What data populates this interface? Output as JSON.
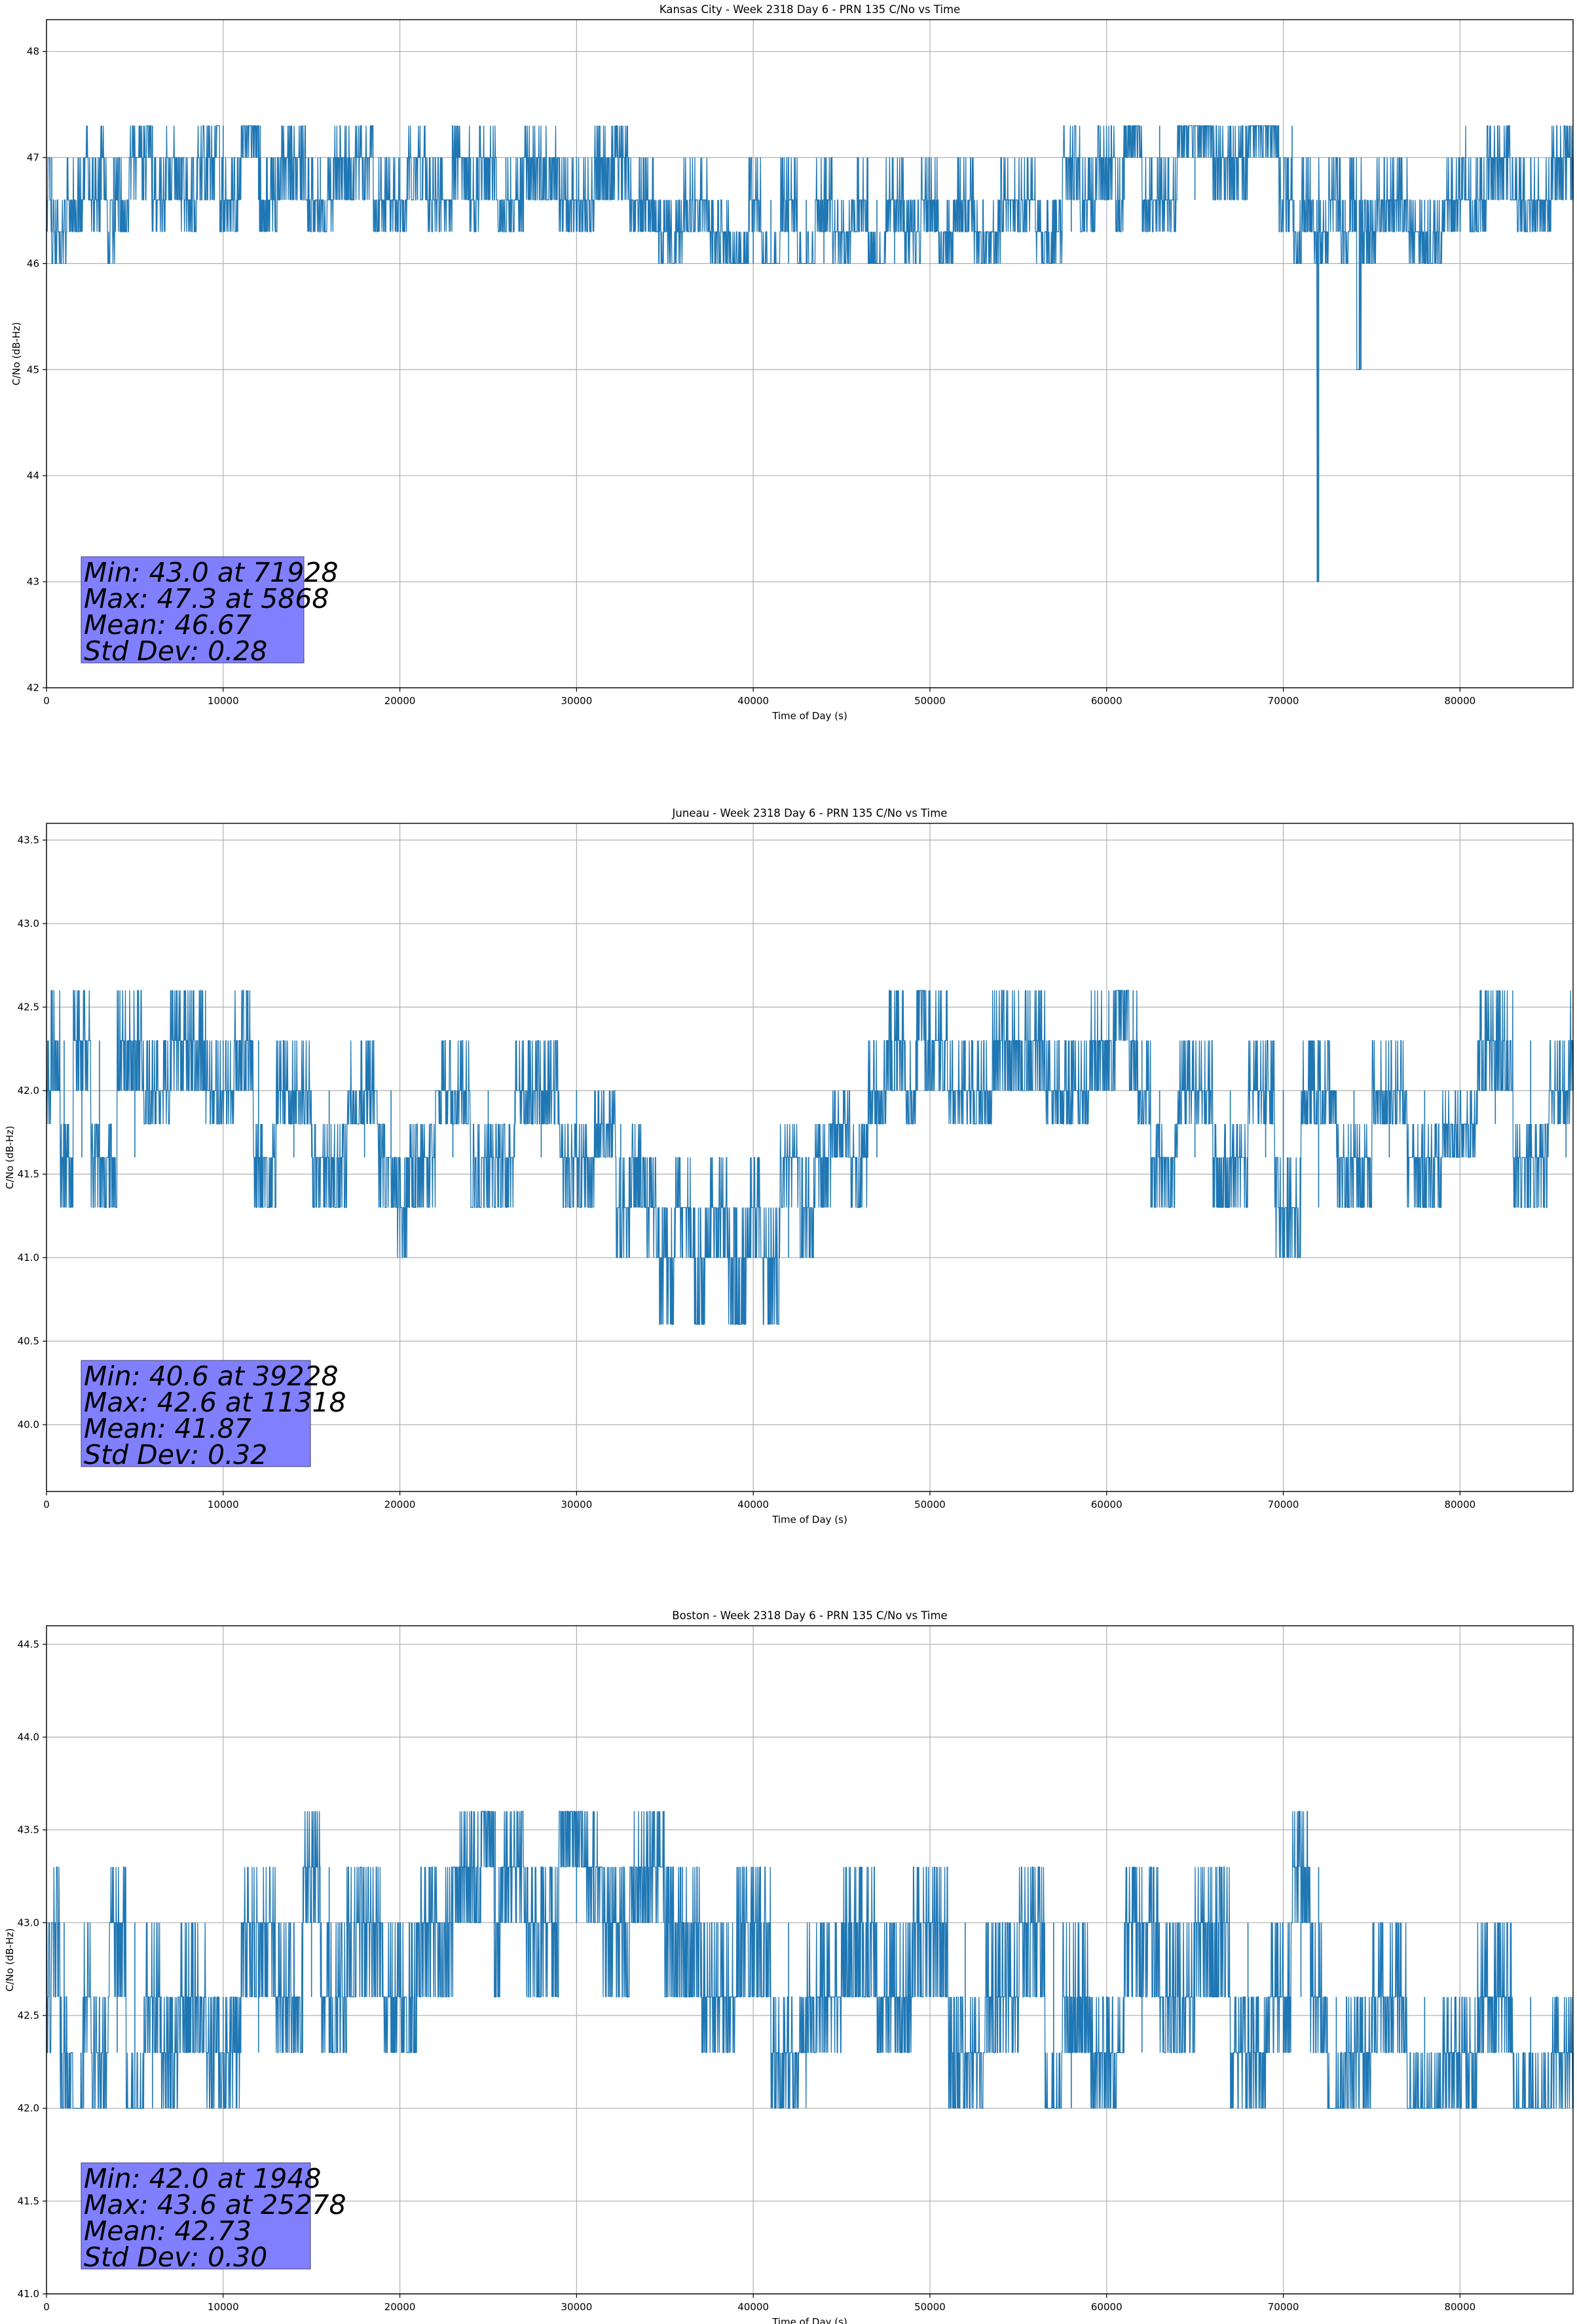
{
  "chart_data": [
    {
      "type": "line",
      "title": "Kansas City - Week 2318 Day 6 - PRN 135 C/No vs Time",
      "xlabel": "Time of Day (s)",
      "ylabel": "C/No (dB-Hz)",
      "xlim": [
        0,
        86400
      ],
      "ylim": [
        42,
        48.3
      ],
      "xticks": [
        0,
        10000,
        20000,
        30000,
        40000,
        50000,
        60000,
        70000,
        80000
      ],
      "yticks": [
        42,
        43,
        44,
        45,
        46,
        47,
        48
      ],
      "ytick_labels": [
        "42",
        "43",
        "44",
        "45",
        "46",
        "47",
        "48"
      ],
      "grid": true,
      "line_color": "#1f77b4",
      "stats_box_color": "#8080ff",
      "stats": [
        "Min: 43.0 at 71928",
        "Max: 47.3 at 5868",
        "Mean: 46.67",
        "Std Dev: 0.28"
      ],
      "series": [
        {
          "x": [
            0,
            200,
            300,
            2000,
            2100,
            3000,
            3100,
            3800,
            3900,
            5500,
            5868,
            6000,
            7500,
            7600,
            9500,
            9600,
            10000,
            12000,
            12100,
            14000,
            15500,
            17000,
            20000,
            21000,
            22000,
            23900,
            24000,
            25000,
            26000,
            28000,
            30000,
            32000,
            33900,
            34000,
            35000,
            37000,
            38000,
            39500,
            40000,
            41000,
            42000,
            43000,
            44000,
            45000,
            46000,
            47000,
            48000,
            49000,
            50000,
            51000,
            52000,
            53000,
            55000,
            57000,
            58000,
            59000,
            60000,
            60900,
            61000,
            63000,
            65000,
            67000,
            69000,
            70500,
            70600,
            71500,
            71900,
            71928,
            72000,
            72100,
            73000,
            73500,
            74000,
            74300,
            74400,
            74500,
            76000,
            78000,
            80000,
            80100,
            81000,
            82000,
            84000,
            86400
          ],
          "y": [
            46.6,
            47.0,
            46.3,
            46.6,
            47.0,
            46.6,
            47.0,
            46.3,
            46.6,
            47.0,
            47.3,
            46.6,
            47.0,
            46.6,
            47.0,
            47.3,
            46.6,
            47.3,
            46.6,
            47.0,
            46.6,
            47.0,
            46.6,
            47.0,
            46.6,
            47.0,
            46.6,
            47.0,
            46.6,
            47.0,
            46.6,
            47.0,
            46.6,
            46.6,
            46.3,
            46.6,
            46.3,
            46.0,
            46.6,
            46.0,
            46.6,
            46.0,
            46.6,
            46.3,
            46.6,
            46.0,
            46.6,
            46.3,
            46.6,
            46.3,
            46.6,
            46.3,
            46.6,
            46.3,
            47.0,
            46.6,
            47.0,
            46.6,
            47.3,
            46.6,
            47.3,
            47.0,
            47.3,
            46.6,
            46.3,
            46.6,
            46.3,
            43.0,
            46.6,
            46.3,
            46.6,
            46.3,
            46.6,
            45.0,
            46.6,
            46.3,
            46.6,
            46.3,
            46.6,
            47.0,
            46.6,
            47.0,
            46.6,
            47.0
          ]
        }
      ]
    },
    {
      "type": "line",
      "title": "Juneau - Week 2318 Day 6 - PRN 135 C/No vs Time",
      "xlabel": "Time of Day (s)",
      "ylabel": "C/No (dB-Hz)",
      "xlim": [
        0,
        86400
      ],
      "ylim": [
        39.6,
        43.6
      ],
      "xticks": [
        0,
        10000,
        20000,
        30000,
        40000,
        50000,
        60000,
        70000,
        80000
      ],
      "yticks": [
        40.0,
        40.5,
        41.0,
        41.5,
        42.0,
        42.5,
        43.0,
        43.5
      ],
      "ytick_labels": [
        "40.0",
        "40.5",
        "41.0",
        "41.5",
        "42.0",
        "42.5",
        "43.0",
        "43.5"
      ],
      "grid": true,
      "line_color": "#1f77b4",
      "stats_box_color": "#8080ff",
      "stats": [
        "Min: 40.6 at 39228",
        "Max: 42.6 at 11318",
        "Mean: 41.87",
        "Std Dev: 0.32"
      ],
      "series": [
        {
          "x": [
            0,
            500,
            1000,
            2000,
            3000,
            5000,
            6000,
            8000,
            10000,
            11300,
            11318,
            11400,
            12000,
            14000,
            16000,
            18000,
            19500,
            20000,
            21000,
            23000,
            25000,
            28000,
            30000,
            32000,
            32500,
            33500,
            34000,
            35000,
            36000,
            37000,
            38000,
            39000,
            39228,
            39400,
            40000,
            41000,
            42000,
            43000,
            44000,
            45000,
            46000,
            47000,
            48000,
            49200,
            49300,
            50000,
            52000,
            55000,
            58000,
            60000,
            61000,
            61500,
            62000,
            63000,
            65000,
            67000,
            69000,
            70000,
            72000,
            74000,
            76000,
            78000,
            80000,
            82000,
            84000,
            86000,
            86400
          ],
          "y": [
            42.0,
            42.3,
            41.6,
            42.3,
            41.6,
            42.3,
            42.0,
            42.3,
            42.0,
            42.3,
            42.6,
            42.3,
            41.6,
            42.0,
            41.6,
            42.0,
            41.6,
            41.3,
            41.6,
            42.0,
            41.6,
            42.0,
            41.6,
            41.8,
            41.3,
            41.6,
            41.3,
            41.0,
            41.3,
            41.0,
            41.3,
            41.0,
            40.6,
            41.0,
            41.3,
            41.0,
            41.6,
            41.3,
            41.6,
            41.8,
            41.6,
            42.0,
            42.3,
            42.0,
            42.6,
            42.3,
            42.0,
            42.3,
            42.0,
            42.3,
            42.6,
            42.3,
            42.0,
            41.6,
            42.0,
            41.6,
            42.0,
            41.3,
            42.0,
            41.6,
            42.0,
            41.6,
            41.8,
            42.3,
            41.6,
            42.0,
            42.3
          ]
        }
      ]
    },
    {
      "type": "line",
      "title": "Boston - Week 2318 Day 6 - PRN 135 C/No vs Time",
      "xlabel": "Time of Day (s)",
      "ylabel": "C/No (dB-Hz)",
      "xlim": [
        0,
        86400
      ],
      "ylim": [
        41.0,
        44.6
      ],
      "xticks": [
        0,
        10000,
        20000,
        30000,
        40000,
        50000,
        60000,
        70000,
        80000
      ],
      "yticks": [
        41.0,
        41.5,
        42.0,
        42.5,
        43.0,
        43.5,
        44.0,
        44.5
      ],
      "ytick_labels": [
        "41.0",
        "41.5",
        "42.0",
        "42.5",
        "43.0",
        "43.5",
        "44.0",
        "44.5"
      ],
      "grid": true,
      "line_color": "#1f77b4",
      "stats_box_color": "#8080ff",
      "stats": [
        "Min: 42.0 at 1948",
        "Max: 43.6 at 25278",
        "Mean: 42.73",
        "Std Dev: 0.30"
      ],
      "series": [
        {
          "x": [
            0,
            500,
            1000,
            1948,
            2100,
            3000,
            4000,
            5000,
            6000,
            7000,
            8000,
            10000,
            12000,
            14000,
            15000,
            16000,
            18000,
            20000,
            22000,
            24000,
            25278,
            25400,
            26000,
            28000,
            30000,
            31000,
            32000,
            34000,
            36000,
            38000,
            40000,
            42000,
            44000,
            46000,
            48000,
            50000,
            52000,
            54000,
            56000,
            57000,
            58000,
            60000,
            62000,
            64000,
            66000,
            68000,
            70000,
            71000,
            72000,
            73000,
            74000,
            76000,
            78000,
            80000,
            82000,
            84000,
            86400
          ],
          "y": [
            42.6,
            43.0,
            42.3,
            42.0,
            42.6,
            42.3,
            43.0,
            42.0,
            42.6,
            42.3,
            42.6,
            42.3,
            43.0,
            42.6,
            43.3,
            42.6,
            43.0,
            42.6,
            43.0,
            43.3,
            43.6,
            43.0,
            43.3,
            43.0,
            43.6,
            43.3,
            43.0,
            43.3,
            43.0,
            42.6,
            43.0,
            42.3,
            42.6,
            43.0,
            42.6,
            43.0,
            42.3,
            42.6,
            43.0,
            42.0,
            42.6,
            42.3,
            43.0,
            42.6,
            43.0,
            42.3,
            42.6,
            43.3,
            42.6,
            42.0,
            42.3,
            42.6,
            42.0,
            42.3,
            42.6,
            42.0,
            42.3
          ]
        }
      ]
    }
  ]
}
